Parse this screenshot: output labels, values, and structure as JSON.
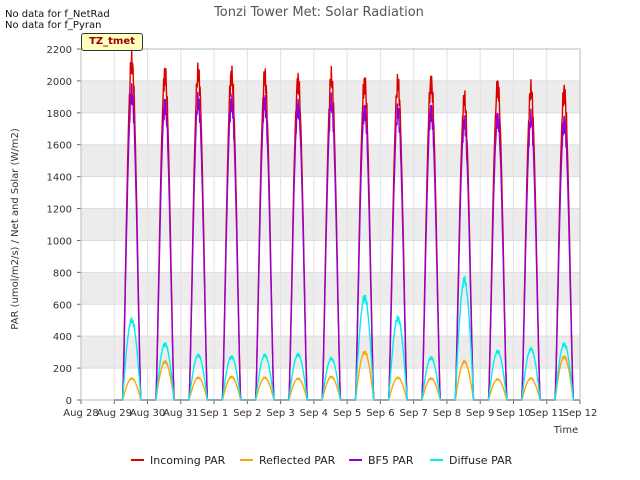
{
  "chart_data": {
    "type": "line",
    "title": "Tonzi Tower Met: Solar Radiation",
    "xlabel": "Time",
    "ylabel": "PAR (umol/m2/s) / Net and Solar (W/m2)",
    "notes": [
      "No data for f_NetRad",
      "No data for f_Pyran"
    ],
    "badge": "TZ_tmet",
    "ylim": [
      0,
      2200
    ],
    "yticks": [
      0,
      200,
      400,
      600,
      800,
      1000,
      1200,
      1400,
      1600,
      1800,
      2000,
      2200
    ],
    "xlim": [
      0,
      15
    ],
    "xtick_labels": [
      "Aug 28",
      "Aug 29",
      "Aug 30",
      "Aug 31",
      "Sep 1",
      "Sep 2",
      "Sep 3",
      "Sep 4",
      "Sep 5",
      "Sep 6",
      "Sep 7",
      "Sep 8",
      "Sep 9",
      "Sep 10",
      "Sep 11",
      "Sep 12"
    ],
    "grid": true,
    "legend_position": "bottom",
    "series": [
      {
        "name": "Incoming PAR",
        "color": "#dd0000",
        "daily_peak": [
          2120,
          2040,
          2050,
          2040,
          2020,
          2000,
          2020,
          1990,
          1980,
          1990,
          1880,
          1970,
          1940,
          1930
        ]
      },
      {
        "name": "Reflected PAR",
        "color": "#ffa500",
        "daily_peak": [
          135,
          240,
          140,
          145,
          140,
          135,
          145,
          300,
          140,
          135,
          240,
          130,
          135,
          270
        ]
      },
      {
        "name": "BF5 PAR",
        "color": "#9400d3",
        "daily_peak": [
          1920,
          1850,
          1870,
          1870,
          1860,
          1840,
          1860,
          1820,
          1800,
          1810,
          1730,
          1770,
          1760,
          1740
        ]
      },
      {
        "name": "Diffuse PAR",
        "color": "#00eeee",
        "daily_peak": [
          500,
          350,
          280,
          270,
          280,
          285,
          260,
          645,
          510,
          265,
          750,
          305,
          320,
          350
        ]
      }
    ]
  }
}
